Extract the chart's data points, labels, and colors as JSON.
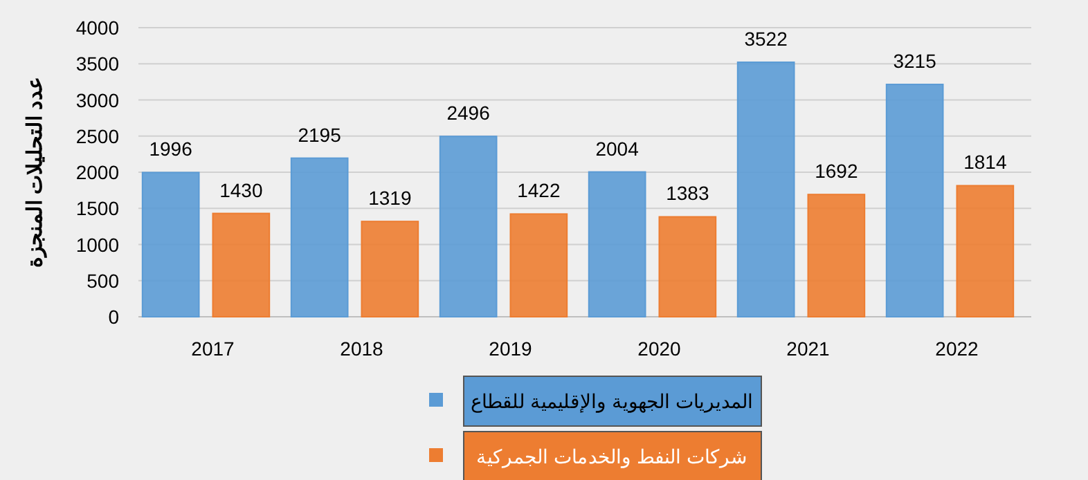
{
  "chart_data": {
    "type": "bar",
    "ylabel": "عدد التحليلات المنجزة",
    "categories": [
      "2017",
      "2018",
      "2019",
      "2020",
      "2021",
      "2022"
    ],
    "series": [
      {
        "name": "المديريات الجهوية والإقليمية للقطاع",
        "color": "#5b9bd5",
        "values": [
          1996,
          2195,
          2496,
          2004,
          3522,
          3215
        ]
      },
      {
        "name": "شركات النفط والخدمات الجمركية",
        "color": "#ed7d31",
        "values": [
          1430,
          1319,
          1422,
          1383,
          1692,
          1814
        ]
      }
    ],
    "ylim": [
      0,
      4000
    ],
    "yticks": [
      0,
      500,
      1000,
      1500,
      2000,
      2500,
      3000,
      3500,
      4000
    ],
    "grid": "y",
    "data_labels": true,
    "legend": "bottom"
  }
}
